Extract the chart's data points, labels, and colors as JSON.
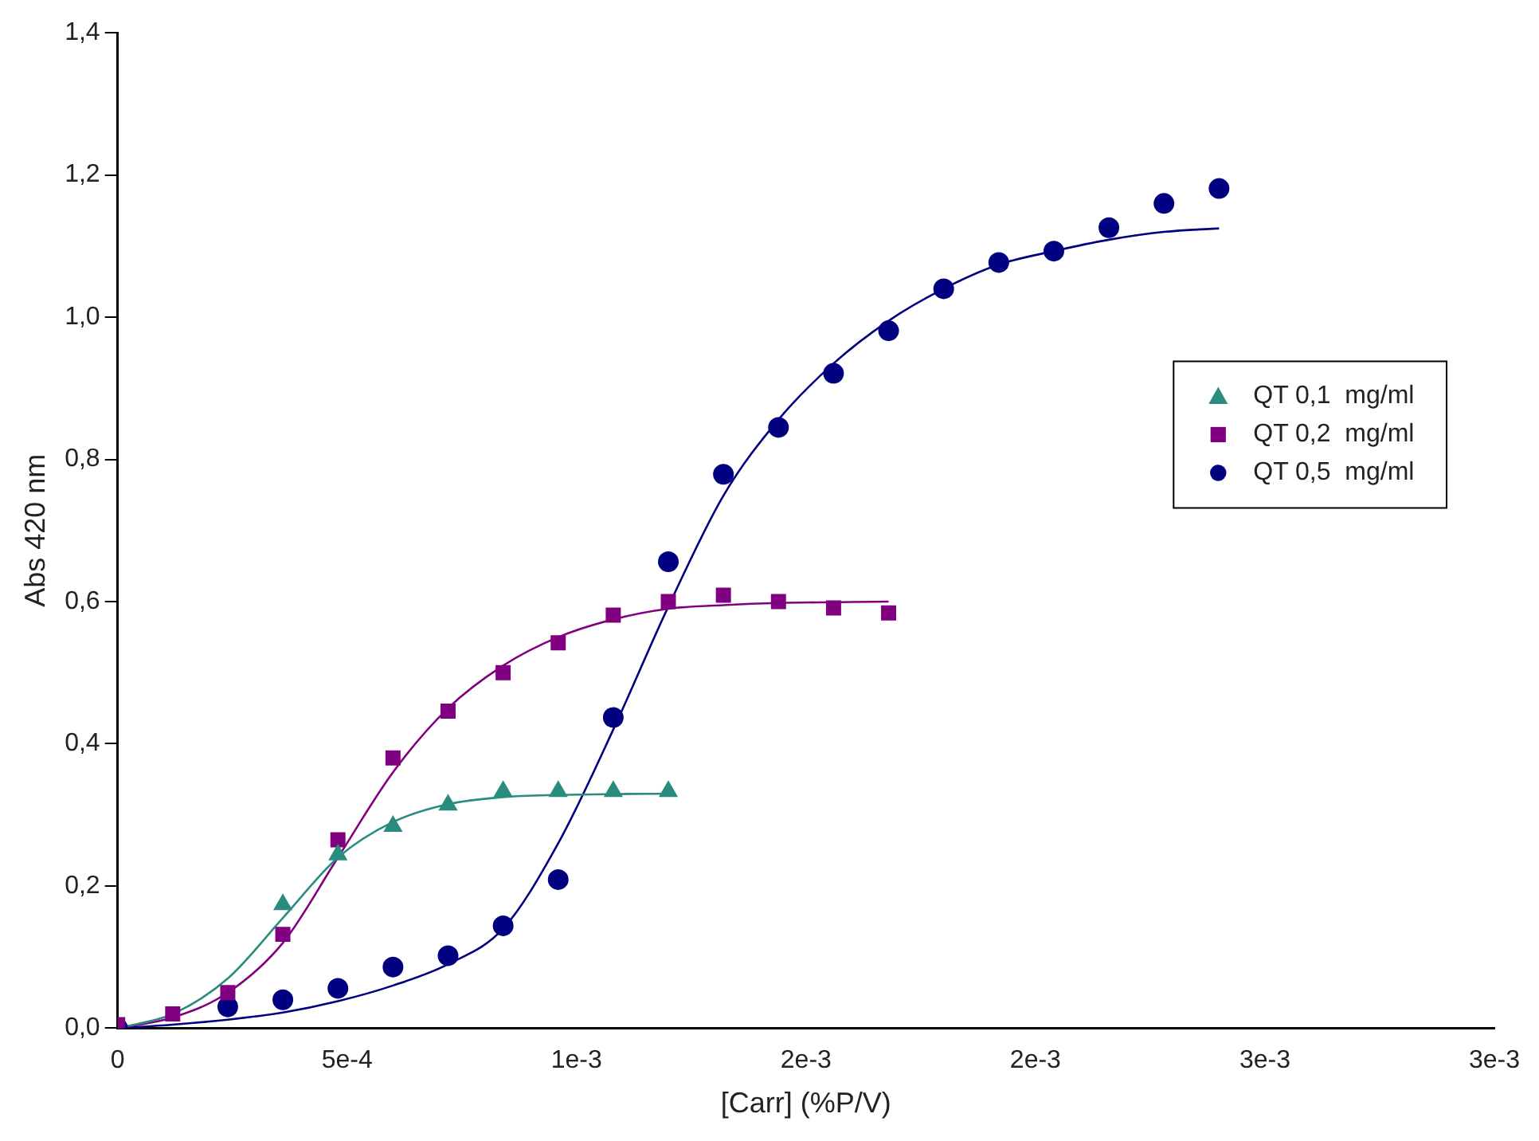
{
  "chart_data": {
    "type": "scatter",
    "xlabel": "[Carr] (%P/V)",
    "ylabel": "Abs 420 nm",
    "x": [
      0,
      0.00012,
      0.00024,
      0.00036,
      0.00048,
      0.0006,
      0.00072,
      0.00084,
      0.00096,
      0.00108,
      0.0012,
      0.00132,
      0.00144,
      0.00156,
      0.00168,
      0.0018,
      0.00192,
      0.00204,
      0.00216,
      0.00228,
      0.0024
    ],
    "series": [
      {
        "name": "QT 0,1  mg/ml",
        "color": "#2a8c7e",
        "marker": "triangle",
        "x": [
          0.00036,
          0.00048,
          0.0006,
          0.00072,
          0.00084,
          0.00096,
          0.00108,
          0.0012
        ],
        "values": [
          0.174,
          0.244,
          0.284,
          0.314,
          0.333,
          0.333,
          0.333,
          0.333
        ]
      },
      {
        "name": "QT 0,2  mg/ml",
        "color": "#800080",
        "marker": "square",
        "x": [
          0,
          0.00012,
          0.00024,
          0.00036,
          0.00048,
          0.0006,
          0.00072,
          0.00084,
          0.00096,
          0.00108,
          0.0012,
          0.00132,
          0.00144,
          0.00156,
          0.00168
        ],
        "values": [
          0.005,
          0.02,
          0.05,
          0.132,
          0.265,
          0.38,
          0.446,
          0.5,
          0.542,
          0.581,
          0.6,
          0.609,
          0.6,
          0.591,
          0.584
        ]
      },
      {
        "name": "QT 0,5  mg/ml",
        "color": "#000080",
        "marker": "circle",
        "values": [
          0.0,
          null,
          0.03,
          0.04,
          0.056,
          0.086,
          0.102,
          0.144,
          0.209,
          0.437,
          0.656,
          0.779,
          0.845,
          0.921,
          0.981,
          1.04,
          1.077,
          1.093,
          1.126,
          1.16,
          1.181
        ]
      },
      {
        "type": "line",
        "color": "#2a8c7e",
        "marker": "none",
        "x": [
          0,
          0.00012,
          0.00024,
          0.00036,
          0.00048,
          0.0006,
          0.00072,
          0.00084,
          0.00096,
          0.0012
        ],
        "values": [
          0,
          0.02,
          0.07,
          0.155,
          0.24,
          0.29,
          0.315,
          0.325,
          0.328,
          0.33
        ]
      },
      {
        "type": "line",
        "color": "#800080",
        "marker": "none",
        "x": [
          0,
          0.00012,
          0.00024,
          0.00036,
          0.00048,
          0.0006,
          0.00072,
          0.00084,
          0.00096,
          0.00108,
          0.0012,
          0.00132,
          0.00144,
          0.00168
        ],
        "values": [
          0,
          0.015,
          0.05,
          0.12,
          0.24,
          0.36,
          0.45,
          0.51,
          0.55,
          0.575,
          0.59,
          0.595,
          0.598,
          0.6
        ]
      },
      {
        "type": "line",
        "color": "#000080",
        "marker": "none",
        "x": [
          0,
          0.00012,
          0.00024,
          0.00036,
          0.00048,
          0.0006,
          0.00072,
          0.00084,
          0.00096,
          0.00108,
          0.0012,
          0.00132,
          0.00144,
          0.00156,
          0.00168,
          0.0018,
          0.00192,
          0.00204,
          0.00216,
          0.00228,
          0.0024
        ],
        "values": [
          0,
          0.005,
          0.012,
          0.022,
          0.038,
          0.06,
          0.09,
          0.14,
          0.26,
          0.42,
          0.593,
          0.749,
          0.856,
          0.935,
          0.995,
          1.04,
          1.074,
          1.093,
          1.109,
          1.12,
          1.125
        ]
      }
    ],
    "xlim": [
      0,
      0.003
    ],
    "xticks": [
      0,
      {
        "value": 0.0005,
        "label": "5e-4"
      },
      {
        "value": 0.001,
        "label": "1e-3"
      },
      {
        "value": 0.0015,
        "label": "2e-3"
      },
      {
        "value": 0.002,
        "label": "2e-3"
      },
      {
        "value": 0.0025,
        "label": "3e-3"
      },
      {
        "value": 0.003,
        "label": "3e-3"
      }
    ],
    "ylim": [
      0,
      1.4
    ],
    "yticks": [
      {
        "value": 0,
        "label": "0,0"
      },
      {
        "value": 0.2,
        "label": "0,2"
      },
      {
        "value": 0.4,
        "label": "0,4"
      },
      {
        "value": 0.6,
        "label": "0,6"
      },
      {
        "value": 0.8,
        "label": "0,8"
      },
      {
        "value": 1.0,
        "label": "1,0"
      },
      {
        "value": 1.2,
        "label": "1,2"
      },
      {
        "value": 1.4,
        "label": "1,4"
      }
    ],
    "grid": false,
    "legend": "right"
  }
}
